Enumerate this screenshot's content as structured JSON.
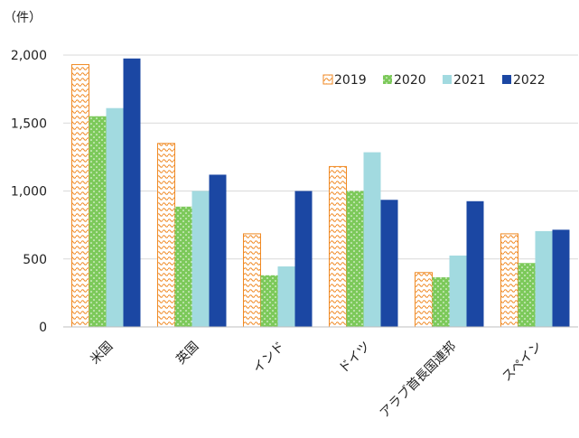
{
  "chart_data": {
    "type": "bar",
    "title": "",
    "ylabel": "（件）",
    "xlabel": "",
    "categories": [
      "米国",
      "英国",
      "インド",
      "ドイツ",
      "アラブ首長国連邦",
      "スペイン"
    ],
    "series": [
      {
        "name": "2019",
        "values": [
          1930,
          1350,
          685,
          1180,
          400,
          685
        ],
        "color": "#f08a24",
        "pattern": "hatched"
      },
      {
        "name": "2020",
        "values": [
          1550,
          885,
          380,
          1000,
          365,
          470
        ],
        "color": "#7cc95a",
        "pattern": "dotted"
      },
      {
        "name": "2021",
        "values": [
          1610,
          1000,
          445,
          1285,
          525,
          705
        ],
        "color": "#a2dae0",
        "pattern": "solid"
      },
      {
        "name": "2022",
        "values": [
          1975,
          1120,
          1000,
          935,
          925,
          715
        ],
        "color": "#1b47a3",
        "pattern": "solid"
      }
    ],
    "ylim": [
      0,
      2000
    ],
    "yticks": [
      0,
      500,
      1000,
      1500,
      2000
    ],
    "ytick_labels": [
      "0",
      "500",
      "1,000",
      "1,500",
      "2,000"
    ],
    "grid": true,
    "legend_position": "top-right"
  }
}
